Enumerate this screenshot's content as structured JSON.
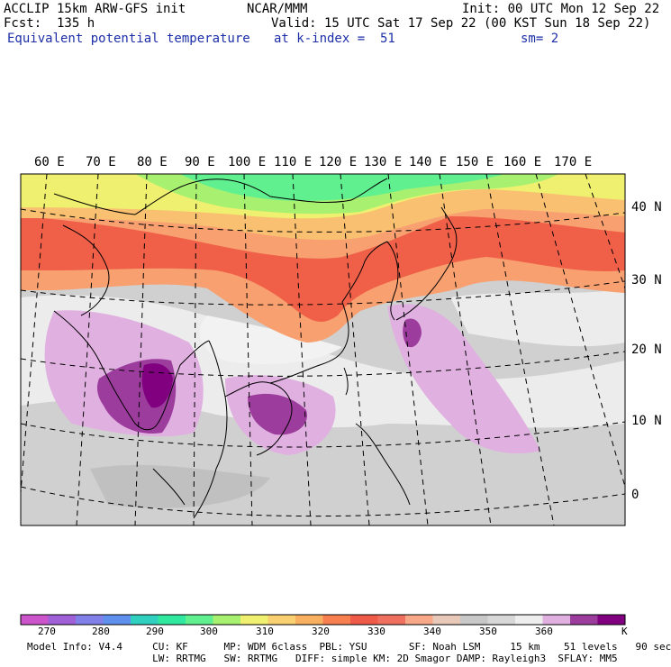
{
  "header": {
    "model_title": "ACCLIP 15km ARW-GFS init",
    "center": "NCAR/MMM",
    "init": "Init: 00 UTC Mon 12 Sep 22",
    "forecast": "Fcst:  135 h",
    "valid": "Valid: 15 UTC Sat 17 Sep 22 (00 KST Sun 18 Sep 22)",
    "field_name": "Equivalent potential temperature",
    "level": "at k-index =  51",
    "smoothing": "sm= 2"
  },
  "map": {
    "longitude_labels": [
      "60 E",
      "70 E",
      "80 E",
      "90 E",
      "100 E",
      "110 E",
      "120 E",
      "130 E",
      "140 E",
      "150 E",
      "160 E",
      "170 E"
    ],
    "latitude_labels": [
      "40 N",
      "30 N",
      "20 N",
      "10 N",
      "0"
    ],
    "colors": {
      "warm_core": "#f06048",
      "warm_edge": "#f8a070",
      "cool_green": "#60f090",
      "cool_yellow": "#f0f070",
      "gray_low": "#c8c8c8",
      "gray_mid": "#e8e8e8",
      "purple_light": "#e0b0e0",
      "purple_dark": "#9c3c9c"
    }
  },
  "colorbar": {
    "colors": [
      "#cc55cc",
      "#a060d8",
      "#8080e8",
      "#6090ee",
      "#30d0c0",
      "#30e8a0",
      "#60f090",
      "#a8f070",
      "#f0f070",
      "#f8d070",
      "#f8b060",
      "#f88050",
      "#f05a48",
      "#f07060",
      "#f8a888",
      "#e8c8b8",
      "#c8c8c8",
      "#d8d8d8",
      "#eeeeee",
      "#e0b0e0",
      "#9c3c9c",
      "#800080"
    ],
    "labels": [
      "270",
      "280",
      "290",
      "300",
      "310",
      "320",
      "330",
      "340",
      "350",
      "360"
    ],
    "unit": "K"
  },
  "model_info": {
    "line1": "Model Info: V4.4     CU: KF      MP: WDM 6class  PBL: YSU       SF: Noah LSM     15 km    51 levels   90 sec",
    "line2": "                     LW: RRTMG   SW: RRTMG   DIFF: simple KM: 2D Smagor DAMP: Rayleigh3  SFLAY: MM5"
  }
}
